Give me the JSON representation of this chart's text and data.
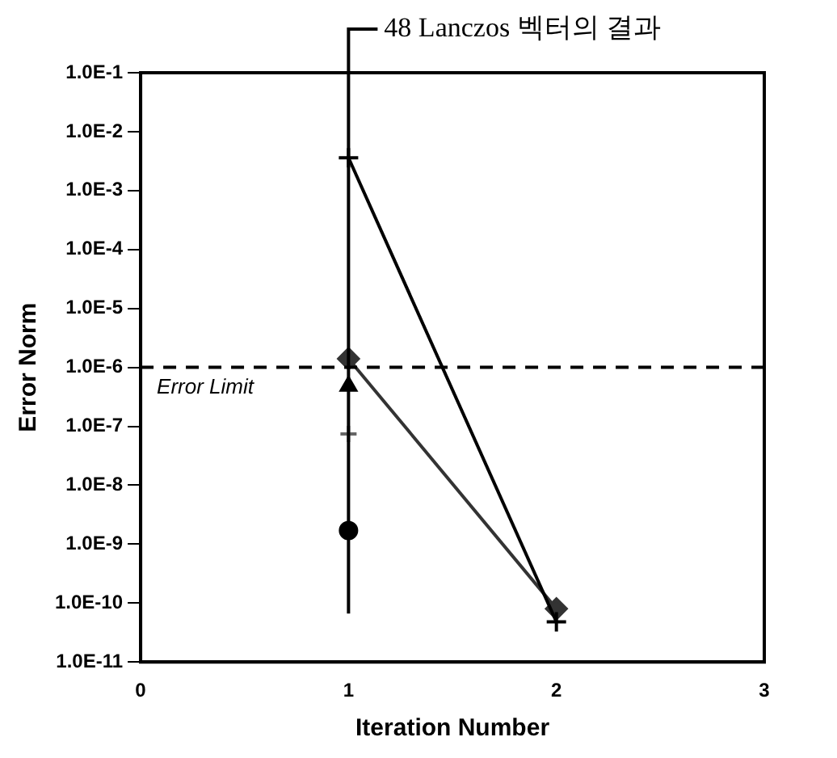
{
  "chart_data": {
    "type": "line",
    "xlabel": "Iteration Number",
    "ylabel": "Error Norm",
    "log": "y",
    "xlim": [
      0,
      3
    ],
    "xticks": [
      0,
      1,
      2,
      3
    ],
    "ylim": [
      1e-11,
      0.1
    ],
    "yticks": [
      {
        "value": 0.1,
        "label": "1.0E-1"
      },
      {
        "value": 0.01,
        "label": "1.0E-2"
      },
      {
        "value": 0.001,
        "label": "1.0E-3"
      },
      {
        "value": 0.0001,
        "label": "1.0E-4"
      },
      {
        "value": 1e-05,
        "label": "1.0E-5"
      },
      {
        "value": 1e-06,
        "label": "1.0E-6"
      },
      {
        "value": 1e-07,
        "label": "1.0E-7"
      },
      {
        "value": 1e-08,
        "label": "1.0E-8"
      },
      {
        "value": 1e-09,
        "label": "1.0E-9"
      },
      {
        "value": 1e-10,
        "label": "1.0E-10"
      },
      {
        "value": 1e-11,
        "label": "1.0E-11"
      }
    ],
    "grid": false,
    "legend": false,
    "x": [
      1,
      2
    ],
    "series": [
      {
        "color": "#000000",
        "marker": "cross",
        "values": [
          0.0036,
          4.8e-11
        ]
      },
      {
        "color": "#333333",
        "marker": "diamond",
        "values": [
          1.4e-06,
          8e-11
        ]
      },
      {
        "type": "scatter",
        "color": "#000000",
        "marker": "triangle",
        "values": [
          4.8e-07,
          null
        ]
      },
      {
        "type": "scatter",
        "color": "#666666",
        "marker": "cross",
        "values": [
          7.4e-08,
          null
        ]
      },
      {
        "type": "scatter",
        "color": "#000000",
        "marker": "circle",
        "values": [
          1.7e-09,
          null
        ]
      }
    ],
    "ref_lines": [
      {
        "axis": "y",
        "value": 1e-06,
        "label": "Error Limit",
        "line_style": "dashed",
        "color": "#000000"
      },
      {
        "axis": "x",
        "value": 1,
        "label": "48 Lanczos 벡터의 결과",
        "color": "#000000"
      }
    ]
  }
}
